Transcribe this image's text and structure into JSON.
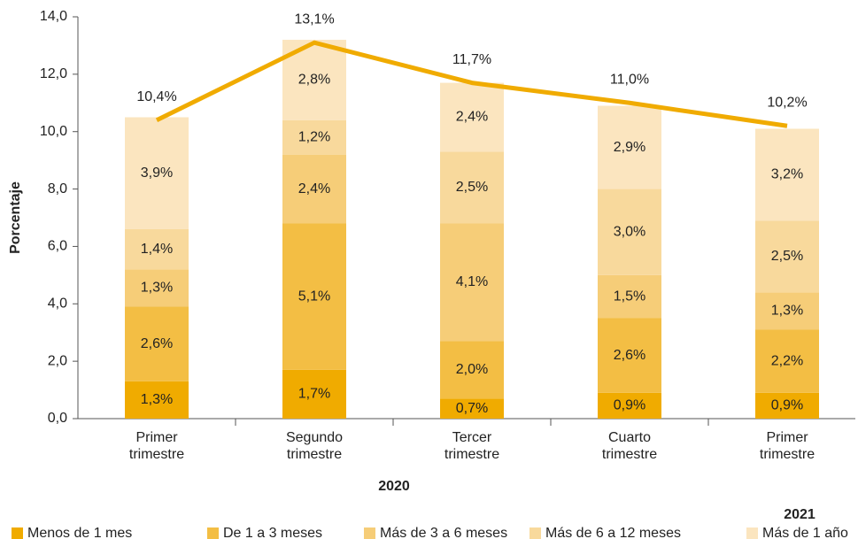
{
  "chart_data": {
    "type": "stacked_bar_line",
    "y_axis_label": "Porcentaje",
    "categories": [
      [
        "Primer",
        "trimestre"
      ],
      [
        "Segundo",
        "trimestre"
      ],
      [
        "Tercer",
        "trimestre"
      ],
      [
        "Cuarto",
        "trimestre"
      ],
      [
        "Primer",
        "trimestre"
      ]
    ],
    "group_labels": [
      "2020",
      "2021"
    ],
    "series": [
      {
        "name": "Menos de 1 mes",
        "color": "#f0ab00",
        "values": [
          1.3,
          1.7,
          0.7,
          0.9,
          0.9
        ],
        "value_labels": [
          "1,3%",
          "1,7%",
          "0,7%",
          "0,9%",
          "0,9%"
        ]
      },
      {
        "name": "De 1 a 3 meses",
        "color": "#f3be44",
        "values": [
          2.6,
          5.1,
          2.0,
          2.6,
          2.2
        ],
        "value_labels": [
          "2,6%",
          "5,1%",
          "2,0%",
          "2,6%",
          "2,2%"
        ]
      },
      {
        "name": "Más de 3 a 6 meses",
        "color": "#f6cd78",
        "values": [
          1.3,
          2.4,
          4.1,
          1.5,
          1.3
        ],
        "value_labels": [
          "1,3%",
          "2,4%",
          "4,1%",
          "1,5%",
          "1,3%"
        ]
      },
      {
        "name": "Más de 6 a 12 meses",
        "color": "#f8d99c",
        "values": [
          1.4,
          1.2,
          2.5,
          3.0,
          2.5
        ],
        "value_labels": [
          "1,4%",
          "1,2%",
          "2,5%",
          "3,0%",
          "2,5%"
        ]
      },
      {
        "name": "Más de 1 año",
        "color": "#fbe5bf",
        "values": [
          3.9,
          2.8,
          2.4,
          2.9,
          3.2
        ],
        "value_labels": [
          "3,9%",
          "2,8%",
          "2,4%",
          "2,9%",
          "3,2%"
        ]
      }
    ],
    "line": {
      "color": "#f0ab00",
      "values": [
        10.4,
        13.1,
        11.7,
        11.0,
        10.2
      ],
      "value_labels": [
        "10,4%",
        "13,1%",
        "11,7%",
        "11,0%",
        "10,2%"
      ]
    },
    "ylim": [
      0,
      14
    ],
    "yticks": [
      {
        "value": 0,
        "label": "0,0"
      },
      {
        "value": 2,
        "label": "2,0"
      },
      {
        "value": 4,
        "label": "4,0"
      },
      {
        "value": 6,
        "label": "6,0"
      },
      {
        "value": 8,
        "label": "8,0"
      },
      {
        "value": 10,
        "label": "10,0"
      },
      {
        "value": 12,
        "label": "12,0"
      },
      {
        "value": 14,
        "label": "14,0"
      }
    ],
    "grid": false,
    "legend": "bottom"
  }
}
